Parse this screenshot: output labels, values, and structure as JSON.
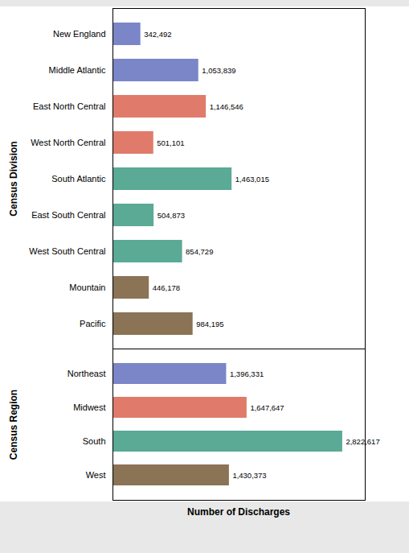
{
  "chart_data": [
    {
      "type": "bar",
      "orientation": "horizontal",
      "ylabel": "Census Division",
      "categories": [
        "New England",
        "Middle Atlantic",
        "East North Central",
        "West North Central",
        "South Atlantic",
        "East South Central",
        "West South Central",
        "Mountain",
        "Pacific"
      ],
      "values": [
        342492,
        1053839,
        1146546,
        501101,
        1463015,
        504873,
        854729,
        446178,
        984195
      ],
      "value_labels": [
        "342,492",
        "1,053,839",
        "1,146,546",
        "501,101",
        "1,463,015",
        "504,873",
        "854,729",
        "446,178",
        "984,195"
      ],
      "colors": [
        "#7b86c8",
        "#7b86c8",
        "#e07b6b",
        "#e07b6b",
        "#5aaa96",
        "#5aaa96",
        "#5aaa96",
        "#8b7355",
        "#8b7355"
      ],
      "xlim": [
        0,
        3100000
      ],
      "data_labels": true,
      "tick_labels": "y",
      "grid": false
    },
    {
      "type": "bar",
      "orientation": "horizontal",
      "ylabel": "Census Region",
      "xlabel": "Number of Discharges",
      "categories": [
        "Northeast",
        "Midwest",
        "South",
        "West"
      ],
      "values": [
        1396331,
        1647647,
        2822617,
        1430373
      ],
      "value_labels": [
        "1,396,331",
        "1,647,647",
        "2,822,617",
        "1,430,373"
      ],
      "colors": [
        "#7b86c8",
        "#e07b6b",
        "#5aaa96",
        "#8b7355"
      ],
      "xlim": [
        0,
        3100000
      ],
      "data_labels": true,
      "tick_labels": "y",
      "grid": false
    }
  ]
}
